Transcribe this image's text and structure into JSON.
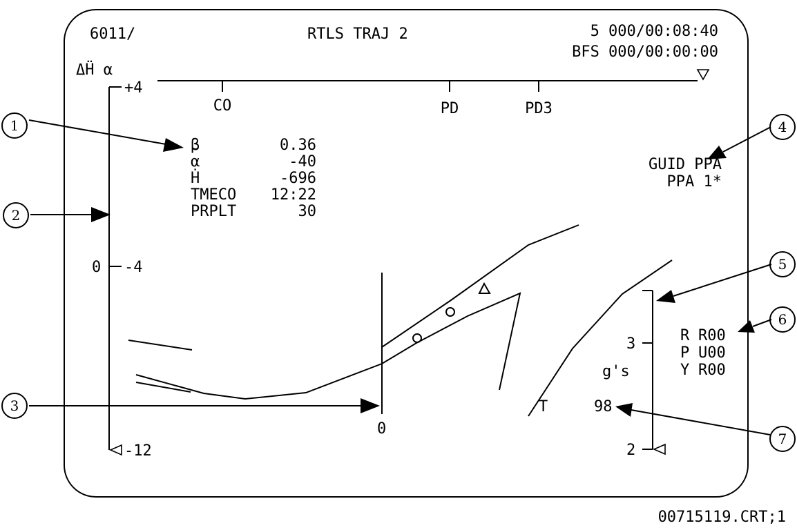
{
  "display": {
    "header": {
      "spec_id": "6011/",
      "title": "RTLS TRAJ 2",
      "time_primary": "5 000/00:08:40",
      "time_bfs": "BFS 000/00:00:00"
    },
    "left_scale": {
      "title": "ΔḦ α",
      "tick_top": "+4",
      "tick_mid_left": "0",
      "tick_mid_right": "-4",
      "tick_bottom": "-12"
    },
    "top_scale": {
      "labels": [
        "CO",
        "PD",
        "PD3"
      ]
    },
    "readouts": [
      {
        "label": "β",
        "value": "0.36"
      },
      {
        "label": "α",
        "value": "-40"
      },
      {
        "label": "Ḣ",
        "value": "-696"
      },
      {
        "label": "TMECO",
        "value": "12:22"
      },
      {
        "label": "PRPLT",
        "value": "30"
      }
    ],
    "guidance": {
      "line1": "GUID PPA",
      "line2": "PPA 1*"
    },
    "g_scale": {
      "tick_3": "3",
      "unit": "g's",
      "tick_2": "2"
    },
    "errors": [
      {
        "axis": "R",
        "value": "R00"
      },
      {
        "axis": "P",
        "value": "U00"
      },
      {
        "axis": "Y",
        "value": "R00"
      }
    ],
    "plot_labels": {
      "zero": "0",
      "t_marker": "T",
      "throttle": "98"
    }
  },
  "callouts": [
    "1",
    "2",
    "3",
    "4",
    "5",
    "6",
    "7"
  ],
  "footer": {
    "image_id": "00715119.CRT;1"
  }
}
